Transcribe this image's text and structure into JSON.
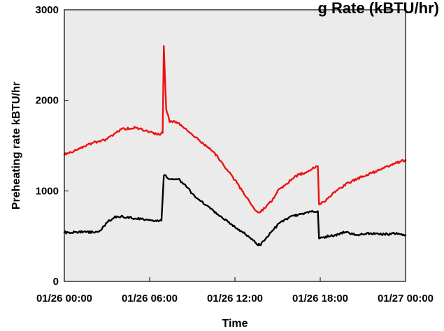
{
  "chart_data": {
    "type": "line",
    "title": "g Rate (kBTU/hr)",
    "xlabel": "Time",
    "ylabel": "Preheating rate kBTU/hr",
    "xlim": [
      "01/26 00:00",
      "01/27 00:00"
    ],
    "ylim": [
      0,
      3000
    ],
    "x_ticks": [
      "01/26 00:00",
      "01/26 06:00",
      "01/26 12:00",
      "01/26 18:00",
      "01/27 00:00"
    ],
    "y_ticks": [
      "0",
      "1000",
      "2000",
      "3000"
    ],
    "grid": false,
    "background_color": "#ebebeb",
    "series": [
      {
        "color": "#ee1111",
        "x": [
          "01/26 00:00",
          "01/26 01:00",
          "01/26 02:00",
          "01/26 03:00",
          "01/26 04:00",
          "01/26 05:00",
          "01/26 06:00",
          "01/26 06:40",
          "01/26 06:55",
          "01/26 07:00",
          "01/26 07:10",
          "01/26 07:25",
          "01/26 07:45",
          "01/26 08:00",
          "01/26 08:30",
          "01/26 09:00",
          "01/26 09:30",
          "01/26 10:00",
          "01/26 10:30",
          "01/26 11:00",
          "01/26 11:30",
          "01/26 12:00",
          "01/26 12:30",
          "01/26 13:00",
          "01/26 13:30",
          "01/26 13:45",
          "01/26 14:15",
          "01/26 14:45",
          "01/26 15:00",
          "01/26 15:30",
          "01/26 16:00",
          "01/26 16:30",
          "01/26 17:00",
          "01/26 17:30",
          "01/26 17:50",
          "01/26 17:55",
          "01/26 18:15",
          "01/26 19:00",
          "01/26 20:00",
          "01/26 21:00",
          "01/26 22:00",
          "01/26 23:00",
          "01/27 00:00"
        ],
        "values": [
          1400,
          1460,
          1530,
          1570,
          1680,
          1700,
          1650,
          1620,
          1640,
          2600,
          1900,
          1760,
          1770,
          1750,
          1690,
          1620,
          1560,
          1490,
          1430,
          1330,
          1220,
          1120,
          1000,
          890,
          780,
          760,
          840,
          920,
          1000,
          1060,
          1130,
          1180,
          1200,
          1260,
          1270,
          850,
          880,
          990,
          1090,
          1160,
          1220,
          1290,
          1340
        ]
      },
      {
        "color": "#000000",
        "x": [
          "01/26 00:00",
          "01/26 01:00",
          "01/26 02:00",
          "01/26 02:30",
          "01/26 03:00",
          "01/26 03:30",
          "01/26 04:00",
          "01/26 05:00",
          "01/26 06:00",
          "01/26 06:50",
          "01/26 07:00",
          "01/26 07:30",
          "01/26 08:00",
          "01/26 08:30",
          "01/26 09:00",
          "01/26 09:30",
          "01/26 10:00",
          "01/26 10:30",
          "01/26 11:00",
          "01/26 11:30",
          "01/26 12:00",
          "01/26 12:30",
          "01/26 13:00",
          "01/26 13:30",
          "01/26 13:45",
          "01/26 14:15",
          "01/26 14:45",
          "01/26 15:15",
          "01/26 15:45",
          "01/26 16:30",
          "01/26 17:30",
          "01/26 17:50",
          "01/26 17:55",
          "01/26 18:15",
          "01/26 19:00",
          "01/26 19:45",
          "01/26 20:30",
          "01/26 21:30",
          "01/26 22:30",
          "01/26 23:30",
          "01/27 00:00"
        ],
        "values": [
          540,
          545,
          545,
          560,
          650,
          705,
          720,
          695,
          680,
          670,
          1170,
          1130,
          1130,
          1070,
          970,
          900,
          840,
          780,
          720,
          660,
          600,
          550,
          490,
          420,
          400,
          490,
          580,
          660,
          700,
          740,
          770,
          775,
          475,
          490,
          510,
          545,
          515,
          530,
          520,
          530,
          510
        ]
      }
    ]
  }
}
